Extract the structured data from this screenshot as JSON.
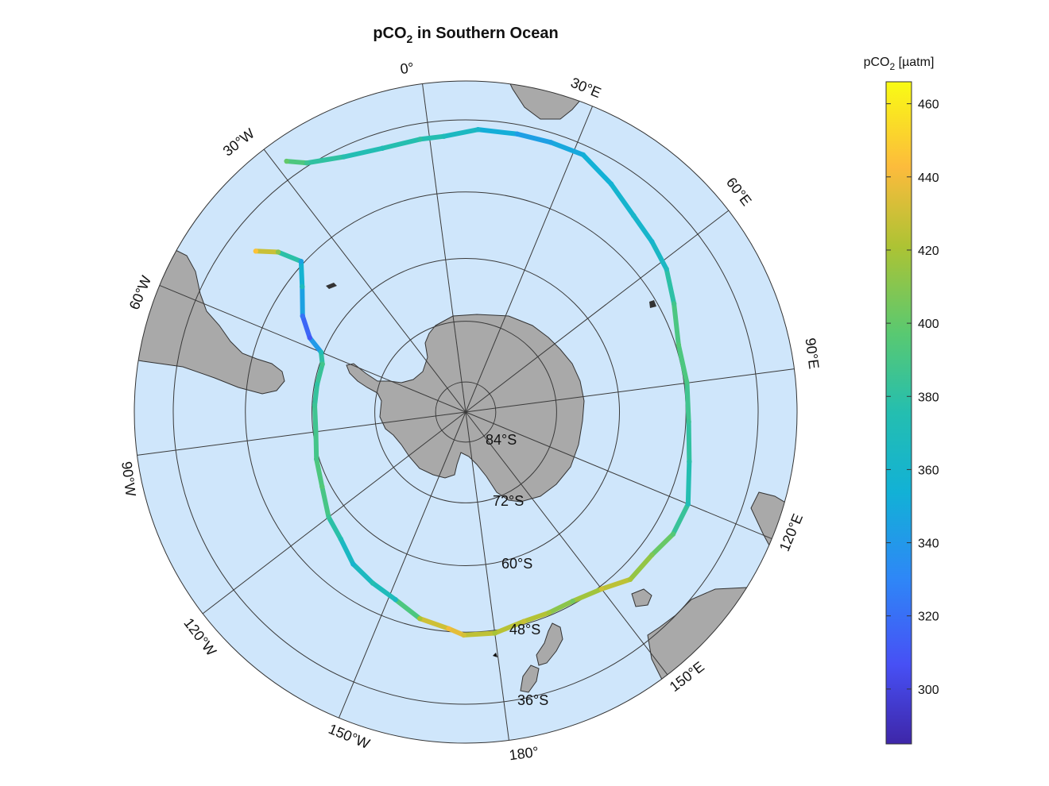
{
  "title": {
    "main": "pCO",
    "sub": "2",
    "rest": " in Southern Ocean"
  },
  "colorbar": {
    "label_main": "pCO",
    "label_sub": "2",
    "label_rest": " [µatm]",
    "min": 285,
    "max": 466,
    "ticks": [
      "300",
      "320",
      "340",
      "360",
      "380",
      "400",
      "420",
      "440",
      "460"
    ],
    "colormap": "parula"
  },
  "map": {
    "projection": "south-polar-stereographic",
    "outer_latitude": -30,
    "ocean_color": "#cfe6fb",
    "land_color": "#a9a9a9",
    "graticule_color": "#3a3a3a",
    "meridian_labels": [
      "0°",
      "30°E",
      "60°E",
      "90°E",
      "120°E",
      "150°E",
      "180°",
      "150°W",
      "120°W",
      "90°W",
      "60°W",
      "30°W"
    ],
    "parallel_labels": [
      "84°S",
      "72°S",
      "60°S",
      "48°S",
      "36°S"
    ]
  },
  "chart_data": {
    "type": "scatter",
    "title": "pCO2 in Southern Ocean",
    "colorbar_label": "pCO2 [µatm]",
    "clim": [
      285,
      466
    ],
    "track": [
      {
        "lon": -45,
        "lat": -40.5,
        "pco2": 445
      },
      {
        "lon": -42,
        "lat": -43.5,
        "pco2": 412
      },
      {
        "lon": -40,
        "lat": -47.5,
        "pco2": 345
      },
      {
        "lon": -45,
        "lat": -50.5,
        "pco2": 368
      },
      {
        "lon": -52,
        "lat": -53.5,
        "pco2": 322
      },
      {
        "lon": -57,
        "lat": -56.5,
        "pco2": 310
      },
      {
        "lon": -60,
        "lat": -59.5,
        "pco2": 372
      },
      {
        "lon": -64,
        "lat": -60.5,
        "pco2": 388
      },
      {
        "lon": -72,
        "lat": -60.5,
        "pco2": 380
      },
      {
        "lon": -80,
        "lat": -60.5,
        "pco2": 385
      },
      {
        "lon": -90,
        "lat": -60.5,
        "pco2": 388
      },
      {
        "lon": -100,
        "lat": -59.5,
        "pco2": 390
      },
      {
        "lon": -110,
        "lat": -58.5,
        "pco2": 395
      },
      {
        "lon": -120,
        "lat": -56.5,
        "pco2": 385
      },
      {
        "lon": -128,
        "lat": -55.5,
        "pco2": 372
      },
      {
        "lon": -136,
        "lat": -53.5,
        "pco2": 358
      },
      {
        "lon": -144,
        "lat": -52.5,
        "pco2": 375
      },
      {
        "lon": -152,
        "lat": -51.5,
        "pco2": 365
      },
      {
        "lon": -160,
        "lat": -49.5,
        "pco2": 420
      },
      {
        "lon": -168,
        "lat": -48.5,
        "pco2": 440
      },
      {
        "lon": -172,
        "lat": -47.5,
        "pco2": 432
      },
      {
        "lon": -180,
        "lat": -47.5,
        "pco2": 420
      },
      {
        "lon": 172,
        "lat": -48.5,
        "pco2": 428
      },
      {
        "lon": 165,
        "lat": -48.5,
        "pco2": 418
      },
      {
        "lon": 158,
        "lat": -48.5,
        "pco2": 405
      },
      {
        "lon": 150,
        "lat": -47.5,
        "pco2": 430
      },
      {
        "lon": 143,
        "lat": -45.5,
        "pco2": 420
      },
      {
        "lon": 135,
        "lat": -45.5,
        "pco2": 408
      },
      {
        "lon": 128,
        "lat": -44.5,
        "pco2": 395
      },
      {
        "lon": 120,
        "lat": -44.5,
        "pco2": 372
      },
      {
        "lon": 110,
        "lat": -46.5,
        "pco2": 378
      },
      {
        "lon": 100,
        "lat": -47.5,
        "pco2": 384
      },
      {
        "lon": 90,
        "lat": -47.5,
        "pco2": 390
      },
      {
        "lon": 80,
        "lat": -47.5,
        "pco2": 395
      },
      {
        "lon": 70,
        "lat": -45.5,
        "pco2": 388
      },
      {
        "lon": 62,
        "lat": -43.5,
        "pco2": 370
      },
      {
        "lon": 55,
        "lat": -42.5,
        "pco2": 358
      },
      {
        "lon": 48,
        "lat": -41.5,
        "pco2": 362
      },
      {
        "lon": 40,
        "lat": -39.5,
        "pco2": 355
      },
      {
        "lon": 32,
        "lat": -37.5,
        "pco2": 352
      },
      {
        "lon": 25,
        "lat": -37.5,
        "pco2": 345
      },
      {
        "lon": 18,
        "lat": -37.5,
        "pco2": 342
      },
      {
        "lon": 10,
        "lat": -37.5,
        "pco2": 362
      },
      {
        "lon": 3,
        "lat": -38.5,
        "pco2": 370
      },
      {
        "lon": -2,
        "lat": -38.5,
        "pco2": 380
      },
      {
        "lon": -10,
        "lat": -38.5,
        "pco2": 372
      },
      {
        "lon": -18,
        "lat": -37.5,
        "pco2": 376
      },
      {
        "lon": -25,
        "lat": -35.5,
        "pco2": 385
      },
      {
        "lon": -28,
        "lat": -33.5,
        "pco2": 400
      }
    ]
  }
}
